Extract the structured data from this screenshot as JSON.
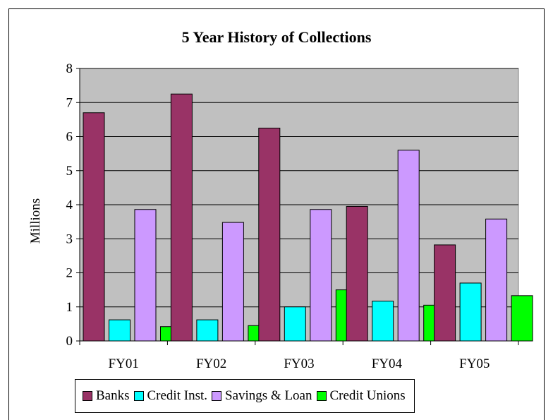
{
  "chart_data": {
    "type": "bar",
    "title": "5 Year History of Collections",
    "ylabel": "Millions",
    "xlabel": "",
    "ylim": [
      0,
      8
    ],
    "yticks": [
      0,
      1,
      2,
      3,
      4,
      5,
      6,
      7,
      8
    ],
    "grid": true,
    "legend_position": "bottom",
    "plot_background": "#C0C0C0",
    "categories": [
      "FY01",
      "FY02",
      "FY03",
      "FY04",
      "FY05"
    ],
    "series": [
      {
        "name": "Banks",
        "color": "#993366",
        "values": [
          6.7,
          7.25,
          6.25,
          3.95,
          2.82
        ]
      },
      {
        "name": "Credit Inst.",
        "color": "#00FFFF",
        "values": [
          0.62,
          0.62,
          1.0,
          1.17,
          1.7
        ]
      },
      {
        "name": "Savings & Loan",
        "color": "#CC99FF",
        "values": [
          3.86,
          3.48,
          3.86,
          5.6,
          3.58
        ]
      },
      {
        "name": "Credit Unions",
        "color": "#00FF00",
        "values": [
          0.42,
          0.45,
          1.5,
          1.05,
          1.33
        ]
      }
    ]
  }
}
